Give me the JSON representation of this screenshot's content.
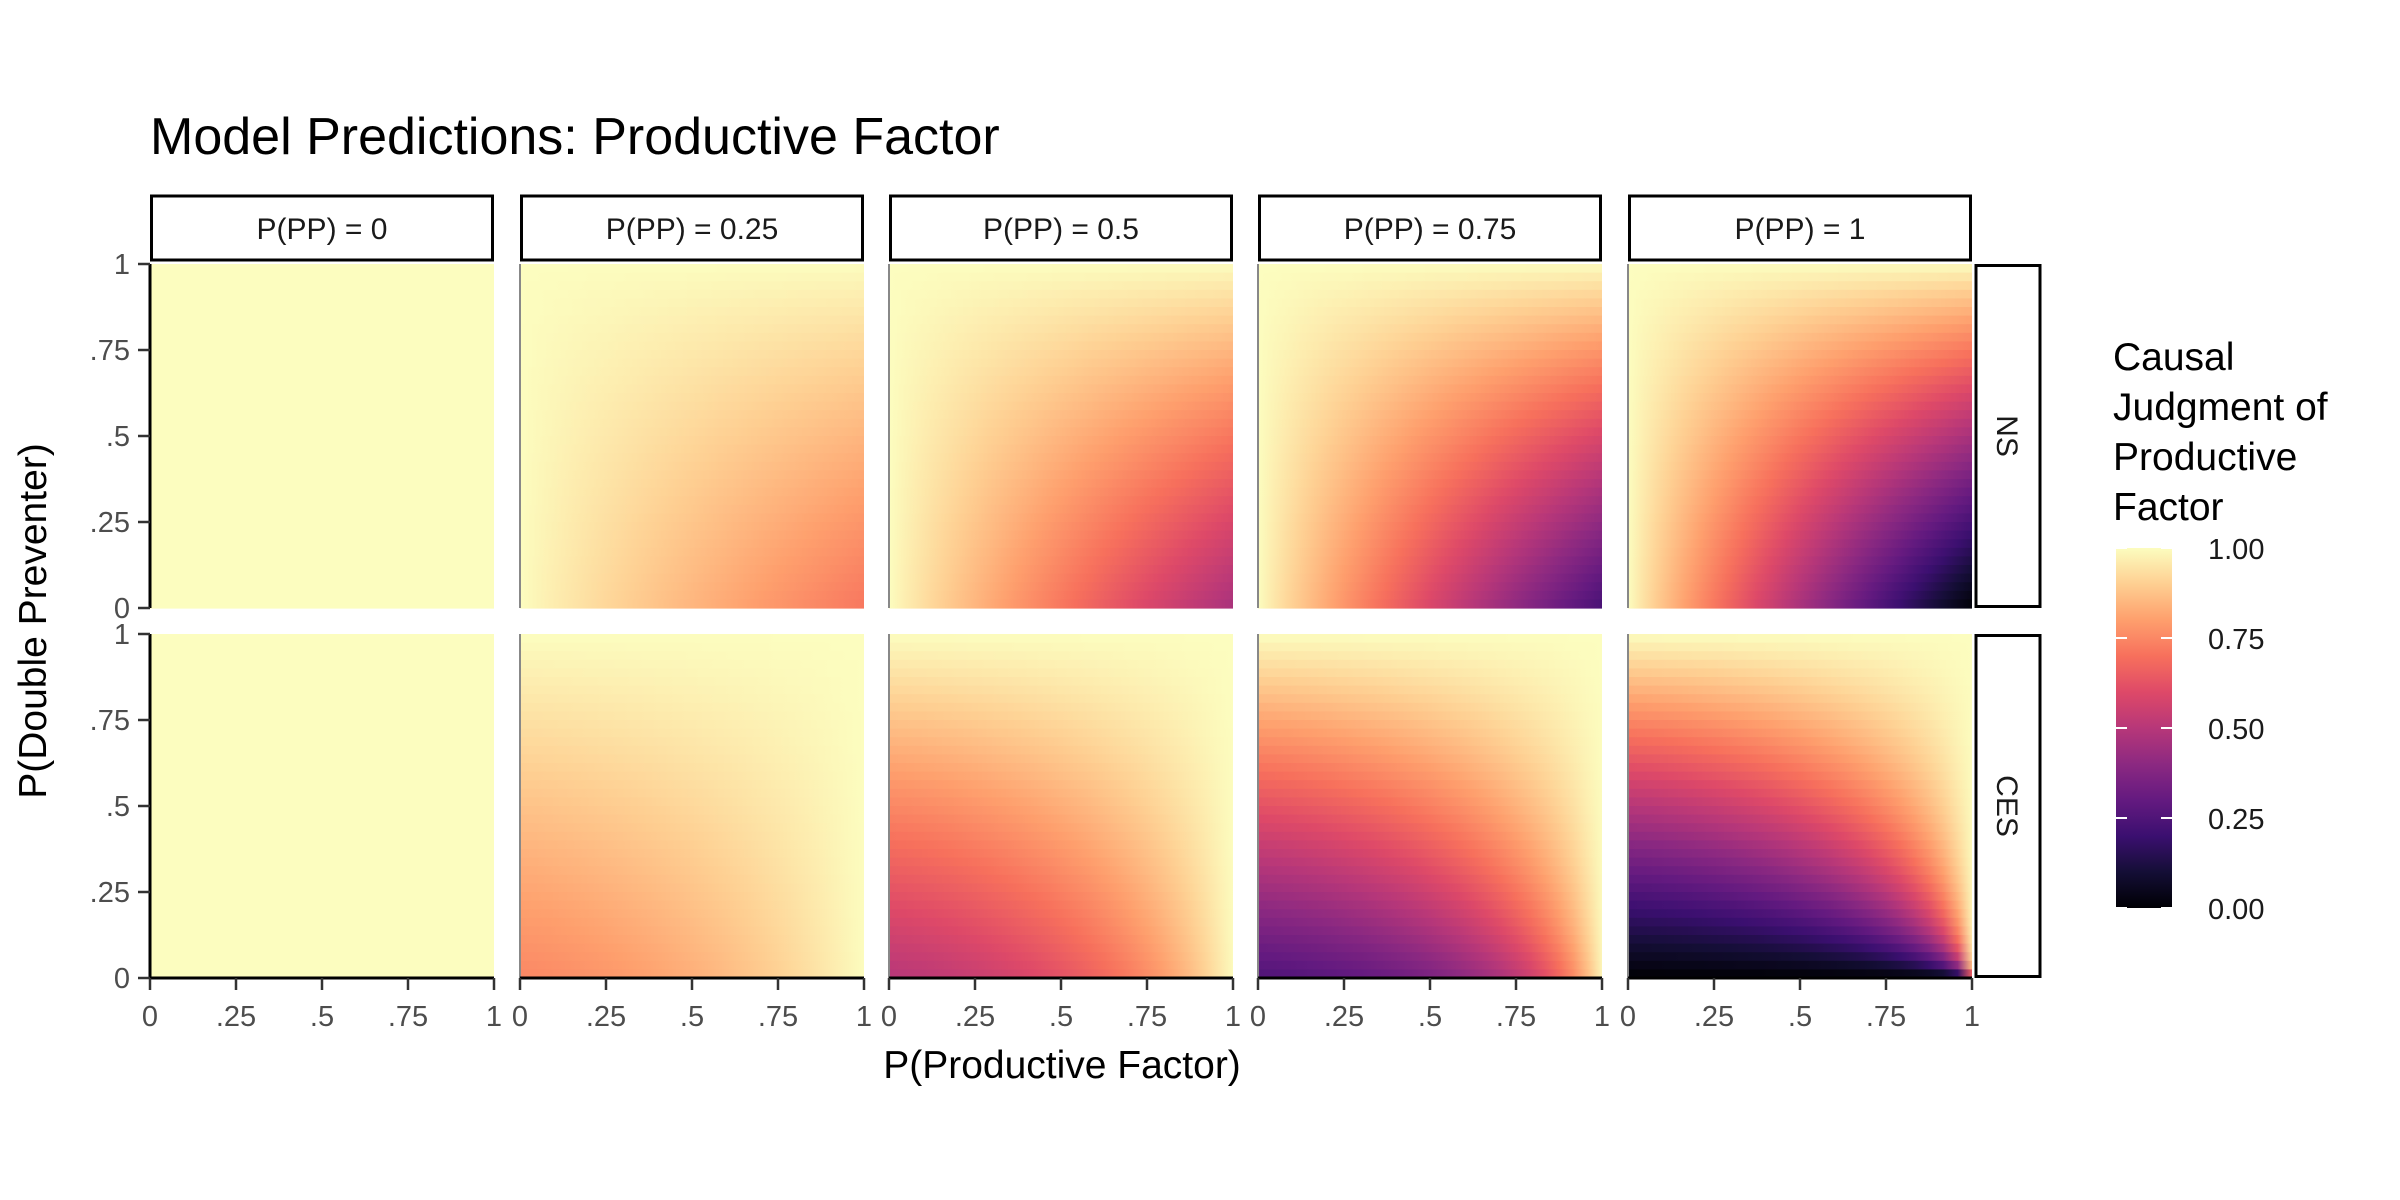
{
  "chart_data": {
    "type": "heatmap",
    "title": "Model Predictions: Productive Factor",
    "xlabel": "P(Productive Factor)",
    "ylabel": "P(Double Preventer)",
    "xlim": [
      0,
      1
    ],
    "ylim": [
      0,
      1
    ],
    "x_ticks": [
      0,
      0.25,
      0.5,
      0.75,
      1
    ],
    "x_tick_labels": [
      "0",
      ".25",
      ".5",
      ".75",
      "1"
    ],
    "y_ticks": [
      0,
      0.25,
      0.5,
      0.75,
      1
    ],
    "y_tick_labels": [
      "0",
      ".25",
      ".5",
      ".75",
      "1"
    ],
    "facet_columns": [
      {
        "label": "P(PP) = 0",
        "pp": 0
      },
      {
        "label": "P(PP) = 0.25",
        "pp": 0.25
      },
      {
        "label": "P(PP) = 0.5",
        "pp": 0.5
      },
      {
        "label": "P(PP) = 0.75",
        "pp": 0.75
      },
      {
        "label": "P(PP) = 1",
        "pp": 1
      }
    ],
    "facet_rows": [
      {
        "label": "NS",
        "model": "NS"
      },
      {
        "label": "CES",
        "model": "CES"
      }
    ],
    "fill_scale": {
      "title_lines": [
        "Causal",
        "Judgment of",
        "Productive",
        "Factor"
      ],
      "palette": "magma",
      "min": 0,
      "max": 1,
      "breaks": [
        1,
        0.75,
        0.5,
        0.25,
        0
      ],
      "break_labels": [
        "1.00",
        "0.75",
        "0.50",
        "0.25",
        "0.00"
      ]
    },
    "colors": {
      "strip_border": "#000000",
      "strip_fill": "#ffffff",
      "tick_text": "#4d4d4d",
      "background": "#ffffff"
    },
    "grid": false,
    "legend_position": "right"
  }
}
